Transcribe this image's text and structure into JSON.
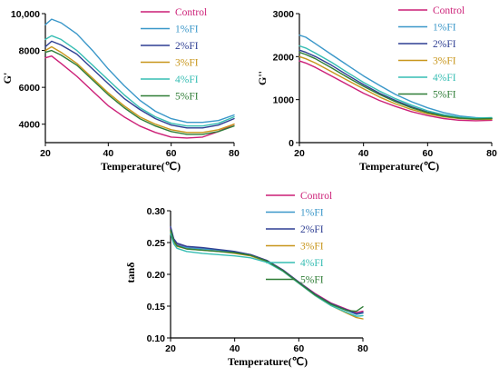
{
  "colors": {
    "Control": "#cc1f77",
    "1%FI": "#3a97c9",
    "2%FI": "#2f3f93",
    "3%FI": "#c8961b",
    "4%FI": "#36bdb3",
    "5%FI": "#2f7d36"
  },
  "chart_data": [
    {
      "type": "line",
      "ylabel": "G'",
      "xlabel": "Temperature(℃)",
      "xlim": [
        20,
        80
      ],
      "ylim": [
        3000,
        10000
      ],
      "xticks": [
        "20",
        "40",
        "60",
        "80"
      ],
      "yticks": [
        "4000",
        "6000",
        "8000",
        "10,000"
      ],
      "ytick_values": [
        4000,
        6000,
        8000,
        10000
      ],
      "grid": false,
      "legend": "top-right",
      "x": [
        20,
        22,
        25,
        30,
        35,
        40,
        45,
        50,
        55,
        60,
        65,
        70,
        75,
        80
      ],
      "series": [
        {
          "name": "Control",
          "values": [
            7600,
            7700,
            7300,
            6600,
            5800,
            5000,
            4400,
            3900,
            3550,
            3300,
            3250,
            3300,
            3600,
            4000
          ]
        },
        {
          "name": "1%FI",
          "values": [
            9400,
            9700,
            9500,
            8900,
            8000,
            7000,
            6100,
            5300,
            4700,
            4300,
            4100,
            4100,
            4200,
            4500
          ]
        },
        {
          "name": "2%FI",
          "values": [
            8200,
            8500,
            8300,
            7800,
            7000,
            6200,
            5400,
            4800,
            4300,
            3950,
            3800,
            3800,
            3950,
            4300
          ]
        },
        {
          "name": "3%FI",
          "values": [
            8000,
            8200,
            7900,
            7300,
            6500,
            5700,
            5000,
            4400,
            4000,
            3700,
            3550,
            3550,
            3700,
            4000
          ]
        },
        {
          "name": "4%FI",
          "values": [
            8600,
            8800,
            8600,
            8000,
            7200,
            6400,
            5600,
            4900,
            4400,
            4050,
            3900,
            3900,
            4050,
            4400
          ]
        },
        {
          "name": "5%FI",
          "values": [
            7900,
            8000,
            7750,
            7200,
            6400,
            5600,
            4900,
            4300,
            3900,
            3600,
            3450,
            3450,
            3600,
            3900
          ]
        }
      ]
    },
    {
      "type": "line",
      "ylabel": "G''",
      "xlabel": "Temperature(℃)",
      "xlim": [
        20,
        80
      ],
      "ylim": [
        0,
        3000
      ],
      "xticks": [
        "20",
        "40",
        "60",
        "80"
      ],
      "yticks": [
        "0",
        "1000",
        "2000",
        "3000"
      ],
      "ytick_values": [
        0,
        1000,
        2000,
        3000
      ],
      "grid": false,
      "legend": "top-right",
      "x": [
        20,
        22,
        25,
        30,
        35,
        40,
        45,
        50,
        55,
        60,
        65,
        70,
        75,
        80
      ],
      "series": [
        {
          "name": "Control",
          "values": [
            1900,
            1850,
            1750,
            1550,
            1350,
            1150,
            980,
            840,
            720,
            630,
            560,
            520,
            510,
            520
          ]
        },
        {
          "name": "1%FI",
          "values": [
            2500,
            2450,
            2300,
            2050,
            1800,
            1550,
            1330,
            1120,
            950,
            810,
            700,
            620,
            580,
            560
          ]
        },
        {
          "name": "2%FI",
          "values": [
            2150,
            2100,
            2000,
            1800,
            1570,
            1350,
            1150,
            980,
            830,
            710,
            630,
            580,
            560,
            560
          ]
        },
        {
          "name": "3%FI",
          "values": [
            2000,
            1950,
            1850,
            1650,
            1450,
            1250,
            1060,
            900,
            770,
            670,
            600,
            560,
            540,
            540
          ]
        },
        {
          "name": "4%FI",
          "values": [
            2250,
            2200,
            2080,
            1870,
            1630,
            1400,
            1200,
            1020,
            870,
            740,
            650,
            590,
            570,
            580
          ]
        },
        {
          "name": "5%FI",
          "values": [
            2100,
            2050,
            1950,
            1740,
            1520,
            1310,
            1120,
            950,
            810,
            700,
            620,
            570,
            550,
            560
          ]
        }
      ]
    },
    {
      "type": "line",
      "ylabel": "tanδ",
      "xlabel": "Temperature(℃)",
      "xlim": [
        20,
        80
      ],
      "ylim": [
        0.1,
        0.3
      ],
      "xticks": [
        "20",
        "40",
        "60",
        "80"
      ],
      "yticks": [
        "0.10",
        "0.15",
        "0.20",
        "0.25",
        "0.30"
      ],
      "ytick_values": [
        0.1,
        0.15,
        0.2,
        0.25,
        0.3
      ],
      "grid": false,
      "legend": "top-right",
      "x": [
        20,
        21,
        22,
        25,
        30,
        35,
        40,
        45,
        50,
        55,
        60,
        65,
        70,
        75,
        78,
        80
      ],
      "series": [
        {
          "name": "Control",
          "values": [
            0.272,
            0.255,
            0.248,
            0.243,
            0.241,
            0.238,
            0.235,
            0.231,
            0.222,
            0.207,
            0.188,
            0.17,
            0.155,
            0.145,
            0.14,
            0.142
          ]
        },
        {
          "name": "1%FI",
          "values": [
            0.268,
            0.252,
            0.246,
            0.242,
            0.24,
            0.238,
            0.235,
            0.23,
            0.221,
            0.206,
            0.187,
            0.168,
            0.153,
            0.143,
            0.137,
            0.139
          ]
        },
        {
          "name": "2%FI",
          "values": [
            0.275,
            0.256,
            0.249,
            0.244,
            0.242,
            0.239,
            0.236,
            0.231,
            0.222,
            0.207,
            0.188,
            0.169,
            0.154,
            0.144,
            0.138,
            0.14
          ]
        },
        {
          "name": "3%FI",
          "values": [
            0.266,
            0.25,
            0.244,
            0.24,
            0.238,
            0.236,
            0.233,
            0.229,
            0.22,
            0.205,
            0.186,
            0.167,
            0.151,
            0.139,
            0.132,
            0.13
          ]
        },
        {
          "name": "4%FI",
          "values": [
            0.264,
            0.248,
            0.241,
            0.236,
            0.233,
            0.231,
            0.229,
            0.226,
            0.219,
            0.205,
            0.186,
            0.167,
            0.151,
            0.14,
            0.134,
            0.135
          ]
        },
        {
          "name": "5%FI",
          "values": [
            0.27,
            0.253,
            0.245,
            0.24,
            0.238,
            0.236,
            0.234,
            0.23,
            0.221,
            0.206,
            0.187,
            0.168,
            0.153,
            0.143,
            0.142,
            0.149
          ]
        }
      ]
    }
  ]
}
